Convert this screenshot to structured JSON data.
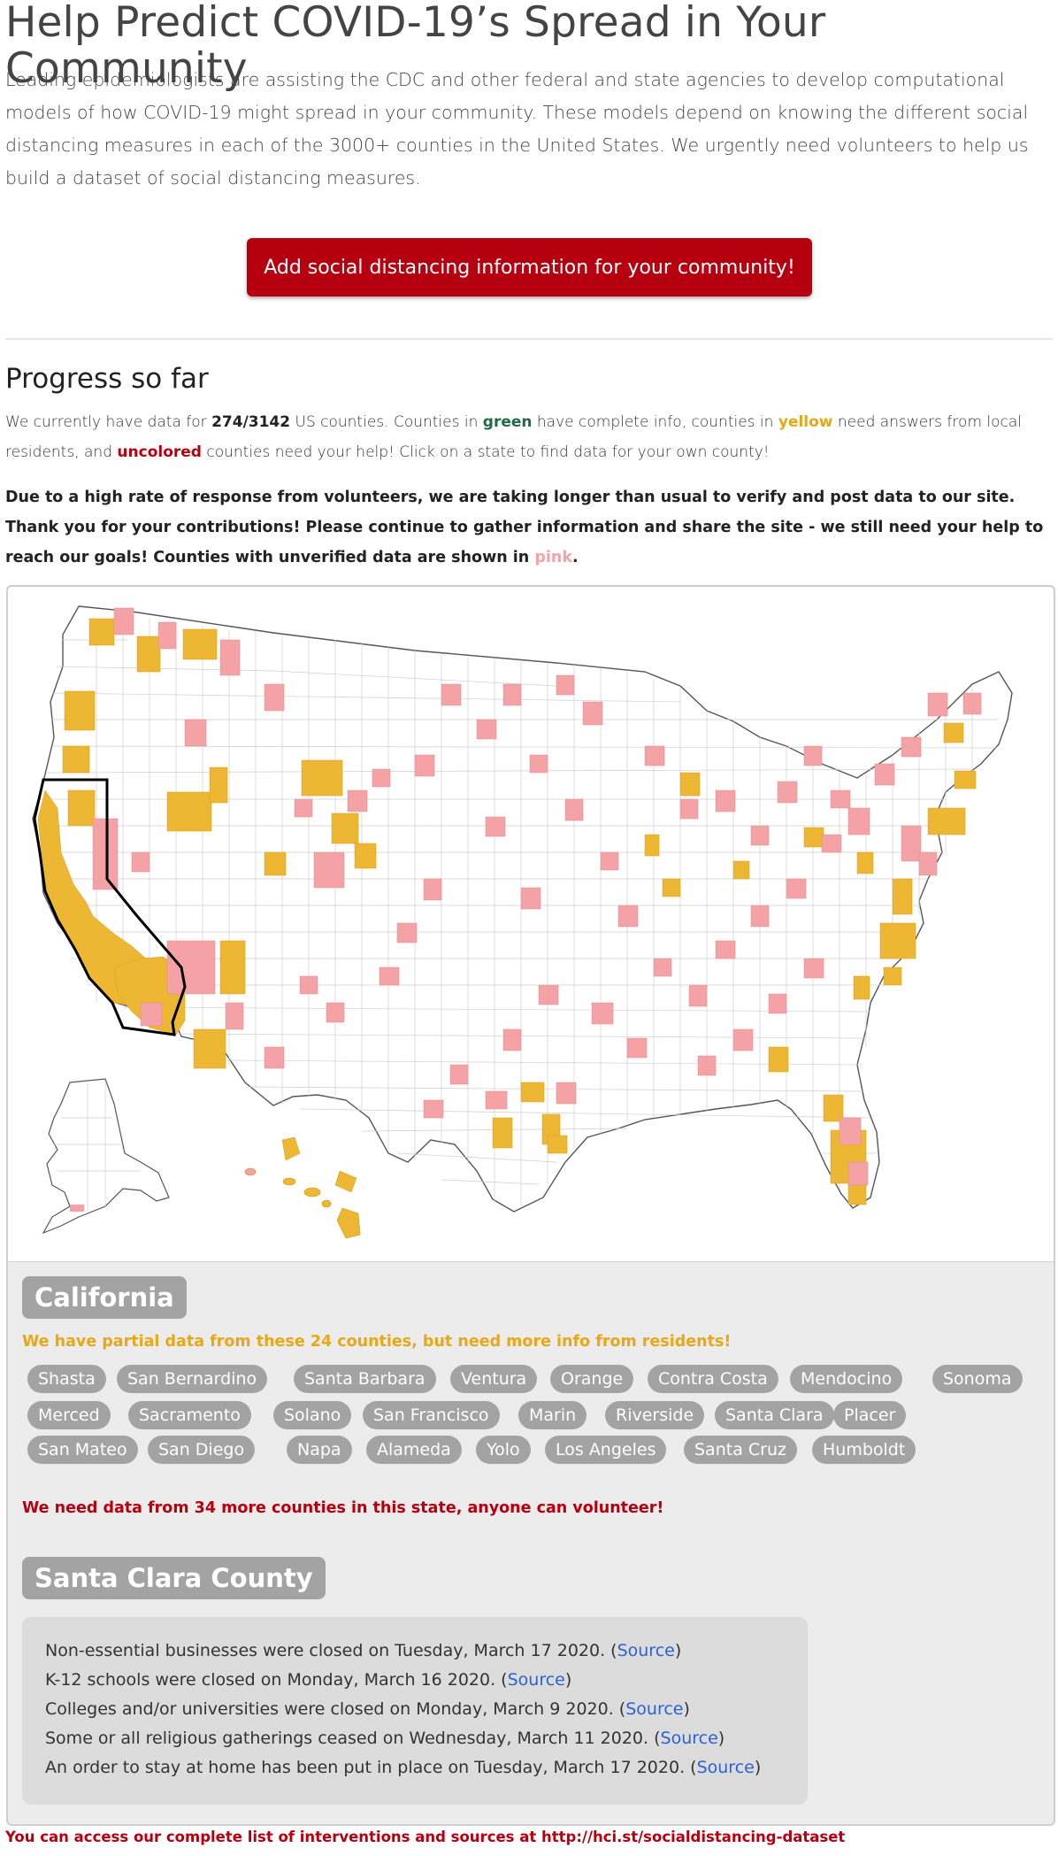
{
  "page": {
    "title": "Help Predict COVID-19’s Spread in Your Community",
    "intro": "Leading epidemiologists are assisting the CDC and other federal and state agencies to develop computational models of how COVID-19 might spread in your community. These models depend on knowing the different social distancing measures in each of the 3000+ counties in the United States. We urgently need volunteers to help us build a dataset of social distancing measures.",
    "cta_label": "Add social distancing information for your community!"
  },
  "progress": {
    "heading": "Progress so far",
    "summary_parts": {
      "p1": "We currently have data for ",
      "count": "274/3142",
      "p2": " US counties. Counties in ",
      "green": "green",
      "p3": " have complete info, counties in ",
      "yellow": "yellow",
      "p4": " need answers from local residents, and ",
      "uncolored": "uncolored",
      "p5": " counties need your help! Click on a state to find data for your own county!"
    },
    "notice_parts": {
      "text": "Due to a high rate of response from volunteers, we are taking longer than usual to verify and post data to our site. Thank you for your contributions! Please continue to gather information and share the site - we still need your help to reach our goals! Counties with unverified data are shown in ",
      "pink": "pink",
      "end": "."
    }
  },
  "colors": {
    "accent_red": "#b7000f",
    "complete_green": "#1e6b46",
    "partial_yellow": "#e6a817",
    "unverified_pink": "#f4a3a8"
  },
  "state": {
    "name": "California",
    "partial_label": "We have partial data from these 24 counties, but need more info from residents!",
    "counties": [
      "Shasta",
      "San Bernardino",
      "Santa Barbara",
      "Ventura",
      "Orange",
      "Contra Costa",
      "Mendocino",
      "Sonoma",
      "Merced",
      "Sacramento",
      "Solano",
      "San Francisco",
      "Marin",
      "Riverside",
      "Santa Clara",
      "Placer",
      "San Mateo",
      "San Diego",
      "Napa",
      "Alameda",
      "Yolo",
      "Los Angeles",
      "Santa Cruz",
      "Humboldt"
    ],
    "need_label": "We need data from 34 more counties in this state, anyone can volunteer!"
  },
  "county": {
    "name": "Santa Clara County",
    "facts": [
      {
        "text": "Non-essential businesses were closed on Tuesday, March 17 2020. (",
        "link": "Source",
        "end": ")"
      },
      {
        "text": "K-12 schools were closed on Monday, March 16 2020. (",
        "link": "Source",
        "end": ")"
      },
      {
        "text": "Colleges and/or universities were closed on Monday, March 9 2020. (",
        "link": "Source",
        "end": ")"
      },
      {
        "text": "Some or all religious gatherings ceased on Wednesday, March 11 2020. (",
        "link": "Source",
        "end": ")"
      },
      {
        "text": "An order to stay at home has been put in place on Tuesday, March 17 2020. (",
        "link": "Source",
        "end": ")"
      }
    ]
  },
  "footer": "You can access our complete list of interventions and sources at http://hci.st/socialdistancing-dataset"
}
